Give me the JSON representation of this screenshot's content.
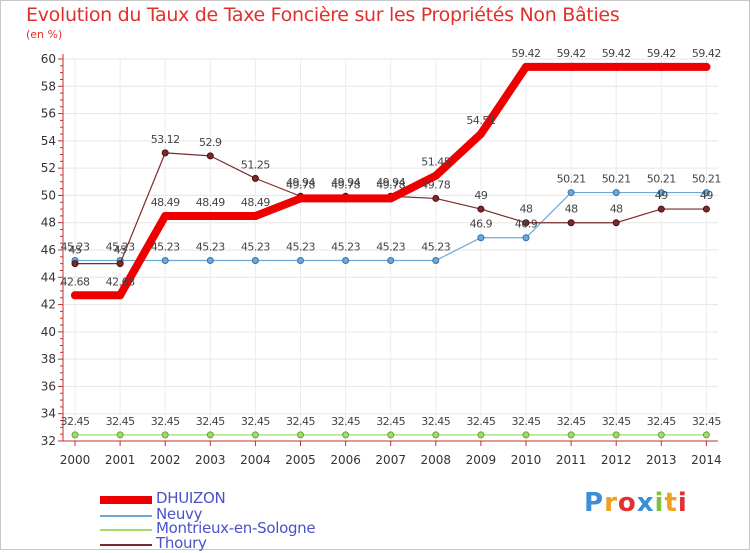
{
  "chart_data": {
    "type": "line",
    "title": "Evolution du Taux de Taxe Foncière sur les Propriétés Non Bâties",
    "ylabel": "(en %)",
    "ylim": [
      32,
      60
    ],
    "yticks": [
      "32",
      "34",
      "36",
      "38",
      "40",
      "42",
      "44",
      "46",
      "48",
      "50",
      "52",
      "54",
      "56",
      "58",
      "60"
    ],
    "categories": [
      "2000",
      "2001",
      "2002",
      "2003",
      "2004",
      "2005",
      "2006",
      "2007",
      "2008",
      "2009",
      "2010",
      "2011",
      "2012",
      "2013",
      "2014"
    ],
    "series": [
      {
        "name": "DHUIZON",
        "color": "#ee0000",
        "values": [
          42.68,
          42.68,
          48.49,
          48.49,
          48.49,
          49.78,
          49.78,
          49.78,
          51.45,
          54.51,
          59.42,
          59.42,
          59.42,
          59.42,
          59.42
        ],
        "labels": [
          "42.68",
          "42.68",
          "48.49",
          "48.49",
          "48.49",
          "49.78",
          "49.78",
          "49.78",
          "51.45",
          "54.51",
          "59.42",
          "59.42",
          "59.42",
          "59.42",
          "59.42"
        ]
      },
      {
        "name": "Neuvy",
        "color": "#6ca8d8",
        "values": [
          45.23,
          45.23,
          45.23,
          45.23,
          45.23,
          45.23,
          45.23,
          45.23,
          45.23,
          46.9,
          46.9,
          50.21,
          50.21,
          50.21,
          50.21
        ],
        "labels": [
          "45.23",
          "45.23",
          "45.23",
          "45.23",
          "45.23",
          "45.23",
          "45.23",
          "45.23",
          "45.23",
          "46.9",
          "46.9",
          "50.21",
          "50.21",
          "50.21",
          "50.21"
        ]
      },
      {
        "name": "Montrieux-en-Sologne",
        "color": "#9edc6c",
        "values": [
          32.45,
          32.45,
          32.45,
          32.45,
          32.45,
          32.45,
          32.45,
          32.45,
          32.45,
          32.45,
          32.45,
          32.45,
          32.45,
          32.45,
          32.45
        ],
        "labels": [
          "32.45",
          "32.45",
          "32.45",
          "32.45",
          "32.45",
          "32.45",
          "32.45",
          "32.45",
          "32.45",
          "32.45",
          "32.45",
          "32.45",
          "32.45",
          "32.45",
          "32.45"
        ]
      },
      {
        "name": "Thoury",
        "color": "#7a2a2a",
        "values": [
          45,
          45,
          53.12,
          52.9,
          51.25,
          49.94,
          49.94,
          49.94,
          49.78,
          49,
          48,
          48,
          48,
          49,
          49
        ],
        "labels": [
          "45",
          "45",
          "53.12",
          "52.9",
          "51.25",
          "49.94",
          "49.94",
          "49.94",
          "49.78",
          "49",
          "48",
          "48",
          "48",
          "49",
          "49"
        ]
      }
    ]
  },
  "legend": [
    {
      "label": "DHUIZON",
      "color": "#ee0000"
    },
    {
      "label": "Neuvy",
      "color": "#6ca8d8"
    },
    {
      "label": "Montrieux-en-Sologne",
      "color": "#9edc6c"
    },
    {
      "label": "Thoury",
      "color": "#7a2a2a"
    }
  ],
  "logo": {
    "letters": [
      "P",
      "r",
      "o",
      "x",
      "i",
      "t",
      "i"
    ],
    "colors": [
      "#3a8fd8",
      "#f0a020",
      "#e03030",
      "#3a8fd8",
      "#80c040",
      "#f0a020",
      "#e03030"
    ]
  }
}
